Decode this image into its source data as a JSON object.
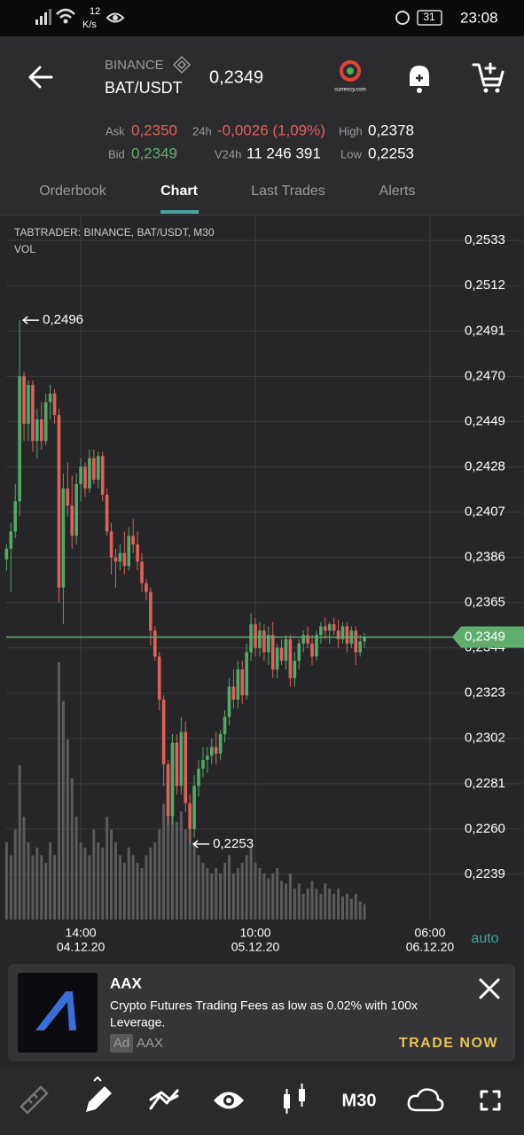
{
  "status_bar": {
    "network_speed": "12",
    "network_unit": "K/s",
    "battery": "31",
    "time": "23:08"
  },
  "header": {
    "exchange": "BINANCE",
    "pair": "BAT/USDT",
    "price": "0,2349",
    "logo_text": "currency.com"
  },
  "stats": {
    "ask_label": "Ask",
    "ask": "0,2350",
    "change_label": "24h",
    "change": "-0,0026 (1,09%)",
    "high_label": "High",
    "high": "0,2378",
    "bid_label": "Bid",
    "bid": "0,2349",
    "volume_label": "V24h",
    "volume": "11 246 391",
    "low_label": "Low",
    "low": "0,2253"
  },
  "tabs": [
    "Orderbook",
    "Chart",
    "Last Trades",
    "Alerts"
  ],
  "chart_data": {
    "type": "candlestick",
    "title": "TABTRADER: BINANCE, BAT/USDT, M30",
    "volume_label": "VOL",
    "scale_mode": "auto",
    "up_color": "#55a868",
    "down_color": "#e0605c",
    "volume_color": "#5c5c5f",
    "grid": true,
    "open": [
      0.2385,
      0.239,
      0.2398,
      0.2412,
      0.247,
      0.2448,
      0.2466,
      0.244,
      0.245,
      0.244,
      0.2458,
      0.2462,
      0.2452,
      0.2372,
      0.2418,
      0.241,
      0.2396,
      0.242,
      0.2428,
      0.2418,
      0.2432,
      0.2422,
      0.2433,
      0.2415,
      0.2398,
      0.2386,
      0.2384,
      0.2388,
      0.2382,
      0.2396,
      0.2392,
      0.2384,
      0.2374,
      0.237,
      0.2352,
      0.234,
      0.232,
      0.229,
      0.2266,
      0.23,
      0.228,
      0.2305,
      0.2272,
      0.226,
      0.228,
      0.2288,
      0.2292,
      0.2294,
      0.2298,
      0.2295,
      0.2304,
      0.2312,
      0.2326,
      0.232,
      0.2334,
      0.2322,
      0.2342,
      0.2355,
      0.2344,
      0.2352,
      0.2342,
      0.235,
      0.2334,
      0.2344,
      0.2338,
      0.2348,
      0.233,
      0.2338,
      0.2346,
      0.235,
      0.2346,
      0.234,
      0.235,
      0.2354,
      0.2352,
      0.2355,
      0.2352,
      0.2348,
      0.2354,
      0.2346,
      0.2352,
      0.2342,
      0.2347
    ],
    "high": [
      0.2392,
      0.2402,
      0.242,
      0.2496,
      0.2472,
      0.2468,
      0.2468,
      0.2455,
      0.2458,
      0.2462,
      0.2466,
      0.2464,
      0.2455,
      0.2425,
      0.243,
      0.2424,
      0.2425,
      0.2432,
      0.243,
      0.2436,
      0.2436,
      0.2435,
      0.2435,
      0.2418,
      0.2402,
      0.239,
      0.2392,
      0.2398,
      0.24,
      0.2404,
      0.2398,
      0.2388,
      0.2376,
      0.2372,
      0.2354,
      0.2342,
      0.2322,
      0.2292,
      0.2304,
      0.2304,
      0.2312,
      0.231,
      0.2276,
      0.2285,
      0.2292,
      0.2298,
      0.2298,
      0.2302,
      0.2305,
      0.2306,
      0.2315,
      0.233,
      0.2334,
      0.2338,
      0.2338,
      0.2346,
      0.236,
      0.2358,
      0.2356,
      0.2355,
      0.2354,
      0.2356,
      0.2346,
      0.2348,
      0.235,
      0.235,
      0.2342,
      0.2348,
      0.2352,
      0.2354,
      0.235,
      0.2352,
      0.2356,
      0.2358,
      0.2356,
      0.2358,
      0.2357,
      0.2356,
      0.2356,
      0.2354,
      0.2354,
      0.235,
      0.2351
    ],
    "low": [
      0.238,
      0.237,
      0.2395,
      0.2405,
      0.244,
      0.244,
      0.2435,
      0.2432,
      0.2436,
      0.2438,
      0.245,
      0.2448,
      0.2365,
      0.2355,
      0.2405,
      0.239,
      0.2392,
      0.2412,
      0.2414,
      0.2416,
      0.242,
      0.2418,
      0.2412,
      0.2396,
      0.2378,
      0.2372,
      0.238,
      0.2378,
      0.238,
      0.2388,
      0.238,
      0.237,
      0.2366,
      0.2345,
      0.2338,
      0.2315,
      0.228,
      0.2262,
      0.2262,
      0.2276,
      0.2276,
      0.2268,
      0.2253,
      0.2256,
      0.2275,
      0.2284,
      0.2286,
      0.229,
      0.229,
      0.2292,
      0.23,
      0.2308,
      0.2316,
      0.2316,
      0.2318,
      0.232,
      0.2338,
      0.234,
      0.234,
      0.2338,
      0.2336,
      0.233,
      0.233,
      0.2336,
      0.2334,
      0.2326,
      0.2326,
      0.2334,
      0.2342,
      0.2344,
      0.2336,
      0.2338,
      0.2346,
      0.2348,
      0.2346,
      0.235,
      0.2344,
      0.2346,
      0.2342,
      0.2344,
      0.2336,
      0.234,
      0.2344
    ],
    "close": [
      0.239,
      0.2398,
      0.2412,
      0.247,
      0.2448,
      0.2466,
      0.244,
      0.245,
      0.244,
      0.2458,
      0.2462,
      0.2452,
      0.2372,
      0.2418,
      0.241,
      0.2396,
      0.242,
      0.2428,
      0.2418,
      0.2432,
      0.2422,
      0.2433,
      0.2415,
      0.2398,
      0.2386,
      0.2384,
      0.2388,
      0.2382,
      0.2396,
      0.2392,
      0.2384,
      0.2374,
      0.237,
      0.2352,
      0.234,
      0.232,
      0.229,
      0.2266,
      0.23,
      0.228,
      0.2305,
      0.2272,
      0.226,
      0.228,
      0.2288,
      0.2292,
      0.2294,
      0.2298,
      0.2295,
      0.2304,
      0.2312,
      0.2326,
      0.232,
      0.2334,
      0.2322,
      0.2342,
      0.2355,
      0.2344,
      0.2352,
      0.2342,
      0.235,
      0.2334,
      0.2344,
      0.2338,
      0.2348,
      0.233,
      0.2338,
      0.2346,
      0.235,
      0.2346,
      0.234,
      0.235,
      0.2354,
      0.2352,
      0.2355,
      0.2352,
      0.2348,
      0.2354,
      0.2346,
      0.2352,
      0.2342,
      0.2347,
      0.2349
    ],
    "volume": [
      30,
      25,
      35,
      60,
      40,
      30,
      25,
      28,
      25,
      22,
      30,
      25,
      100,
      85,
      70,
      55,
      40,
      30,
      28,
      25,
      35,
      30,
      28,
      40,
      35,
      30,
      25,
      22,
      28,
      25,
      22,
      20,
      25,
      28,
      30,
      35,
      45,
      40,
      50,
      38,
      42,
      35,
      45,
      30,
      25,
      22,
      20,
      18,
      20,
      18,
      22,
      25,
      18,
      20,
      22,
      25,
      28,
      22,
      20,
      18,
      16,
      18,
      20,
      15,
      14,
      18,
      12,
      14,
      10,
      12,
      15,
      12,
      10,
      14,
      12,
      10,
      12,
      9,
      10,
      8,
      10,
      7,
      6
    ],
    "ylim": [
      0.2218,
      0.2545
    ],
    "yticks": [
      {
        "value": 0.2533,
        "label": "0,2533"
      },
      {
        "value": 0.2512,
        "label": "0,2512"
      },
      {
        "value": 0.2491,
        "label": "0,2491"
      },
      {
        "value": 0.247,
        "label": "0,2470"
      },
      {
        "value": 0.2449,
        "label": "0,2449"
      },
      {
        "value": 0.2428,
        "label": "0,2428"
      },
      {
        "value": 0.2407,
        "label": "0,2407"
      },
      {
        "value": 0.2386,
        "label": "0,2386"
      },
      {
        "value": 0.2365,
        "label": "0,2365"
      },
      {
        "value": 0.2344,
        "label": "0,2344"
      },
      {
        "value": 0.2323,
        "label": "0,2323"
      },
      {
        "value": 0.2302,
        "label": "0,2302"
      },
      {
        "value": 0.2281,
        "label": "0,2281"
      },
      {
        "value": 0.226,
        "label": "0,2260"
      },
      {
        "value": 0.2239,
        "label": "0,2239"
      }
    ],
    "xlim": [
      -1.5,
      103.1
    ],
    "xticks": [
      {
        "value": 17,
        "label": "14:00",
        "date": "04.12.20"
      },
      {
        "value": 57,
        "label": "10:00",
        "date": "05.12.20"
      },
      {
        "value": 97,
        "label": "06:00",
        "date": "06.12.20"
      }
    ],
    "last_price": {
      "value": 0.2349,
      "label": "0,2349",
      "color": "#5fae6c"
    },
    "annotations": [
      {
        "value": 0.2496,
        "label": "0,2496"
      },
      {
        "value": 0.2253,
        "label": "0,2253"
      }
    ]
  },
  "ad": {
    "brand": "AAX",
    "text_line1": "Crypto Futures Trading Fees as low as 0.02% with 100x",
    "text_line2": "Leverage.",
    "badge": "Ad",
    "advertiser": "AAX",
    "cta": "TRADE NOW"
  },
  "toolbar": {
    "timeframe": "M30"
  }
}
